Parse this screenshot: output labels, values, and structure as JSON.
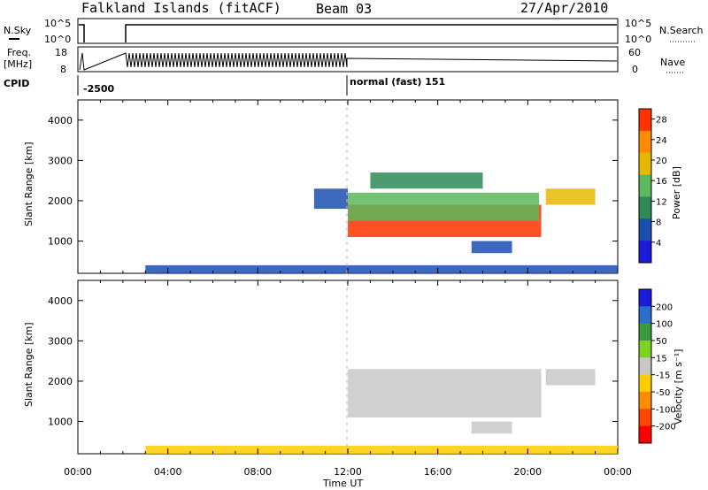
{
  "header": {
    "station": "Falkland Islands (fitACF)",
    "beam": "Beam 03",
    "date": "27/Apr/2010"
  },
  "strips": {
    "nsky_label": "N.Sky",
    "nsky_ticks": [
      "10^5",
      "10^0"
    ],
    "nsearch_label": "N.Search",
    "nsearch_ticks": [
      "10^5",
      "10^0"
    ],
    "freq_label_1": "Freq.",
    "freq_label_2": "[MHz]",
    "freq_ticks": [
      "18",
      "8"
    ],
    "nave_label": "Nave",
    "nave_ticks": [
      "60",
      "0"
    ],
    "cpid_label": "CPID",
    "cpid_values": [
      "-2500",
      "normal (fast) 151"
    ]
  },
  "chart_data": [
    {
      "type": "heatmap",
      "name": "power",
      "ylabel": "Slant Range [km]",
      "yticks": [
        "1000",
        "2000",
        "3000",
        "4000"
      ],
      "ylim": [
        200,
        4500
      ],
      "colorbar_label": "Power [dB]",
      "colorbar_ticks": [
        "4",
        "8",
        "12",
        "16",
        "20",
        "24",
        "28"
      ],
      "colorbar_range": [
        0,
        30
      ],
      "colors": [
        "#1a1ad9",
        "#1a4fb0",
        "#2e8b57",
        "#5cb85c",
        "#e6b800",
        "#ff8c00",
        "#ff3300"
      ],
      "regions": [
        {
          "x": [
            12.0,
            20.6
          ],
          "y": [
            1100,
            1900
          ],
          "value": 26
        },
        {
          "x": [
            12.0,
            20.5
          ],
          "y": [
            1500,
            2200
          ],
          "value": 14
        },
        {
          "x": [
            13.0,
            18.0
          ],
          "y": [
            2300,
            2700
          ],
          "value": 10
        },
        {
          "x": [
            20.8,
            23.0
          ],
          "y": [
            1900,
            2300
          ],
          "value": 18
        },
        {
          "x": [
            10.5,
            12.0
          ],
          "y": [
            1800,
            2300
          ],
          "value": 6
        },
        {
          "x": [
            17.5,
            19.3
          ],
          "y": [
            700,
            1000
          ],
          "value": 6
        },
        {
          "x": [
            3.0,
            24.0
          ],
          "y": [
            200,
            400
          ],
          "value": 6
        }
      ]
    },
    {
      "type": "heatmap",
      "name": "velocity",
      "ylabel": "Slant Range [km]",
      "yticks": [
        "1000",
        "2000",
        "3000",
        "4000"
      ],
      "ylim": [
        200,
        4500
      ],
      "colorbar_label": "Velocity [m s⁻¹]",
      "colorbar_ticks": [
        "200",
        "100",
        "50",
        "15",
        "-15",
        "-50",
        "-100",
        "-200"
      ],
      "colorbar_range": [
        -250,
        250
      ],
      "colors": [
        "#1a1ad9",
        "#2a6fcc",
        "#3c9a3c",
        "#7ed321",
        "#c8c8c8",
        "#ffcc00",
        "#ff8c00",
        "#ff4500",
        "#ff0000"
      ],
      "regions": [
        {
          "x": [
            12.0,
            20.6
          ],
          "y": [
            1100,
            2300
          ],
          "value": 0
        },
        {
          "x": [
            20.8,
            23.0
          ],
          "y": [
            1900,
            2300
          ],
          "value": 0
        },
        {
          "x": [
            17.5,
            19.3
          ],
          "y": [
            700,
            1000
          ],
          "value": 0
        },
        {
          "x": [
            3.0,
            24.0
          ],
          "y": [
            200,
            400
          ],
          "value": -40
        }
      ]
    }
  ],
  "time_axis": {
    "xlabel": "Time UT",
    "ticks": [
      "00:00",
      "04:00",
      "08:00",
      "12:00",
      "16:00",
      "20:00",
      "00:00"
    ],
    "xlim": [
      0,
      24
    ]
  }
}
